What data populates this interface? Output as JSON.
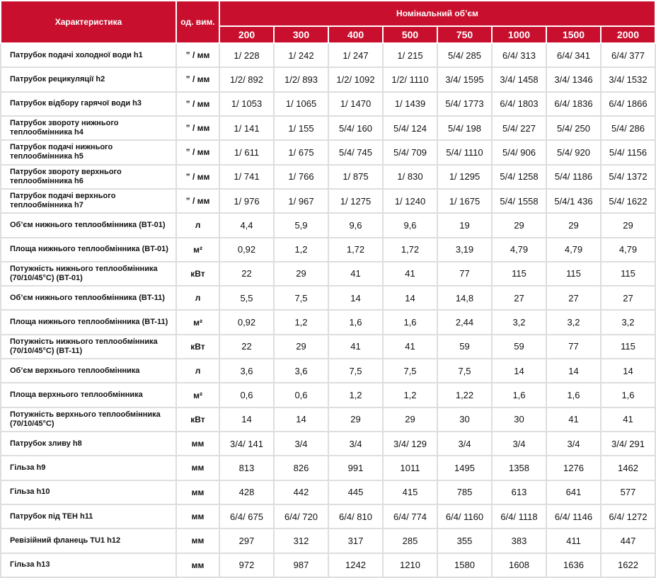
{
  "header": {
    "characteristic": "Характеристика",
    "unit": "од. вим.",
    "volume": "Номінальний об’єм",
    "volumes": [
      200,
      300,
      400,
      500,
      750,
      1000,
      1500,
      2000
    ]
  },
  "rows": [
    {
      "label": "Патрубок подачі  холодної води h1",
      "unit": "” / мм",
      "values": [
        "1/ 228",
        "1/ 242",
        "1/ 247",
        "1/ 215",
        "5/4/ 285",
        "6/4/ 313",
        "6/4/ 341",
        "6/4/ 377"
      ]
    },
    {
      "label": "Патрубок рецикуляції h2",
      "unit": "” / мм",
      "values": [
        "1/2/ 892",
        "1/2/ 893",
        "1/2/ 1092",
        "1/2/ 1110",
        "3/4/ 1595",
        "3/4/ 1458",
        "3/4/ 1346",
        "3/4/ 1532"
      ]
    },
    {
      "label": "Патрубок відбору гарячої води h3",
      "unit": "” / мм",
      "values": [
        "1/ 1053",
        "1/ 1065",
        "1/ 1470",
        "1/ 1439",
        "5/4/ 1773",
        "6/4/ 1803",
        "6/4/ 1836",
        "6/4/ 1866"
      ]
    },
    {
      "label": "Патрубок звороту нижнього теплообмінника h4",
      "unit": "” / мм",
      "values": [
        "1/ 141",
        "1/ 155",
        "5/4/ 160",
        "5/4/ 124",
        "5/4/ 198",
        "5/4/ 227",
        "5/4/ 250",
        "5/4/ 286"
      ]
    },
    {
      "label": "Патрубок подачі нижнього теплообмінника h5",
      "unit": "” / мм",
      "values": [
        "1/ 611",
        "1/ 675",
        "5/4/ 745",
        "5/4/ 709",
        "5/4/ 1110",
        "5/4/ 906",
        "5/4/ 920",
        "5/4/ 1156"
      ]
    },
    {
      "label": "Патрубок звороту верхнього теплообмінника h6",
      "unit": "” / мм",
      "values": [
        "1/ 741",
        "1/ 766",
        "1/ 875",
        "1/ 830",
        "1/ 1295",
        "5/4/ 1258",
        "5/4/ 1186",
        "5/4/ 1372"
      ]
    },
    {
      "label": "Патрубок подачі верхнього теплообмінника h7",
      "unit": "” / мм",
      "values": [
        "1/ 976",
        "1/ 967",
        "1/ 1275",
        "1/ 1240",
        "1/ 1675",
        "5/4/ 1558",
        "5/4/1 436",
        "5/4/ 1622"
      ]
    },
    {
      "label": "Об’єм нижнього теплообмінника (BT-01)",
      "unit": "л",
      "values": [
        "4,4",
        "5,9",
        "9,6",
        "9,6",
        "19",
        "29",
        "29",
        "29"
      ]
    },
    {
      "label": "Площа нижнього теплообмінника (BT-01)",
      "unit": "м²",
      "values": [
        "0,92",
        "1,2",
        "1,72",
        "1,72",
        "3,19",
        "4,79",
        "4,79",
        "4,79"
      ]
    },
    {
      "label": "Потужність нижнього теплообмінника (70/10/45°C) (BT-01)",
      "unit": "кВт",
      "values": [
        "22",
        "29",
        "41",
        "41",
        "77",
        "115",
        "115",
        "115"
      ]
    },
    {
      "label": "Об’єм нижнього теплообмінника (BT-11)",
      "unit": "л",
      "values": [
        "5,5",
        "7,5",
        "14",
        "14",
        "14,8",
        "27",
        "27",
        "27"
      ]
    },
    {
      "label": "Площа нижнього теплообмінника (BT-11)",
      "unit": "м²",
      "values": [
        "0,92",
        "1,2",
        "1,6",
        "1,6",
        "2,44",
        "3,2",
        "3,2",
        "3,2"
      ]
    },
    {
      "label": "Потужність нижнього теплообмінника (70/10/45°C) (BT-11)",
      "unit": "кВт",
      "values": [
        "22",
        "29",
        "41",
        "41",
        "59",
        "59",
        "77",
        "115"
      ]
    },
    {
      "label": "Об’єм верхнього теплообмінника",
      "unit": "л",
      "values": [
        "3,6",
        "3,6",
        "7,5",
        "7,5",
        "7,5",
        "14",
        "14",
        "14"
      ]
    },
    {
      "label": "Площа верхнього теплообмінника",
      "unit": "м²",
      "values": [
        "0,6",
        "0,6",
        "1,2",
        "1,2",
        "1,22",
        "1,6",
        "1,6",
        "1,6"
      ]
    },
    {
      "label": "Потужність верхнього теплообмінника (70/10/45°C)",
      "unit": "кВт",
      "values": [
        "14",
        "14",
        "29",
        "29",
        "30",
        "30",
        "41",
        "41"
      ]
    },
    {
      "label": "Патрубок зливу h8",
      "unit": "мм",
      "values": [
        "3/4/ 141",
        "3/4",
        "3/4",
        "3/4/ 129",
        "3/4",
        "3/4",
        "3/4",
        "3/4/ 291"
      ]
    },
    {
      "label": "Гільза h9",
      "unit": "мм",
      "values": [
        "813",
        "826",
        "991",
        "1011",
        "1495",
        "1358",
        "1276",
        "1462"
      ]
    },
    {
      "label": "Гільза h10",
      "unit": "мм",
      "values": [
        "428",
        "442",
        "445",
        "415",
        "785",
        "613",
        "641",
        "577"
      ]
    },
    {
      "label": "Патрубок під ТЕН h11",
      "unit": "мм",
      "values": [
        "6/4/ 675",
        "6/4/ 720",
        "6/4/ 810",
        "6/4/ 774",
        "6/4/ 1160",
        "6/4/ 1118",
        "6/4/ 1146",
        "6/4/ 1272"
      ]
    },
    {
      "label": "Ревізійний фланець TU1 h12",
      "unit": "мм",
      "values": [
        "297",
        "312",
        "317",
        "285",
        "355",
        "383",
        "411",
        "447"
      ]
    },
    {
      "label": "Гільза h13",
      "unit": "мм",
      "values": [
        "972",
        "987",
        "1242",
        "1210",
        "1580",
        "1608",
        "1636",
        "1622"
      ]
    }
  ]
}
